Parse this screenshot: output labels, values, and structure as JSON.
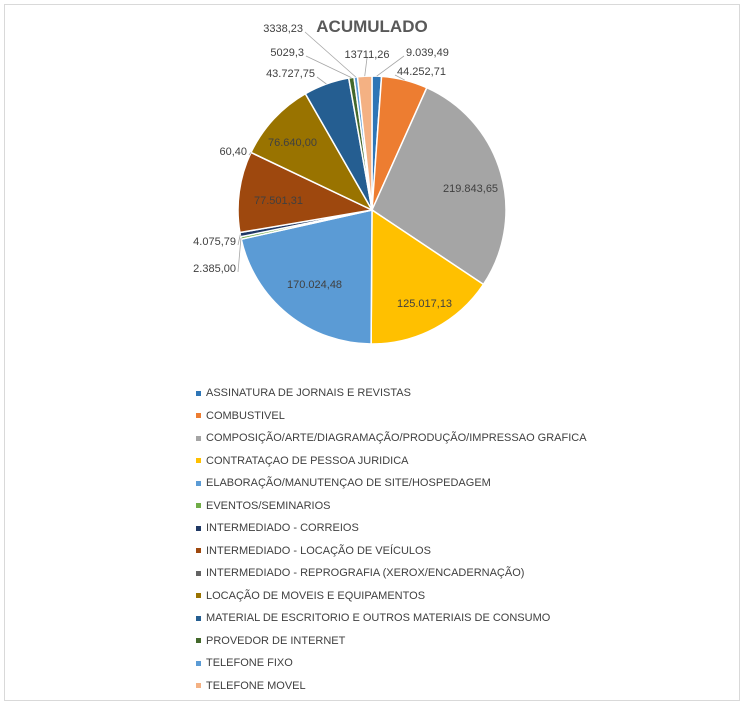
{
  "chart_data": {
    "type": "pie",
    "title": "ACUMULADO",
    "legend_position": "bottom",
    "slices": [
      {
        "name": "ASSINATURA DE JORNAIS E REVISTAS",
        "value": 9039.49,
        "label": "9.039,49",
        "color": "#2e75b6"
      },
      {
        "name": "COMBUSTIVEL",
        "value": 44252.71,
        "label": "44.252,71",
        "color": "#ed7d31"
      },
      {
        "name": "COMPOSIÇÃO/ARTE/DIAGRAMAÇÃO/PRODUÇÃO/IMPRESSAO GRAFICA",
        "value": 219843.65,
        "label": "219.843,65",
        "color": "#a5a5a5"
      },
      {
        "name": "CONTRATAÇAO DE PESSOA JURIDICA",
        "value": 125017.13,
        "label": "125.017,13",
        "color": "#ffc000"
      },
      {
        "name": "ELABORAÇÃO/MANUTENÇAO DE SITE/HOSPEDAGEM",
        "value": 170024.48,
        "label": "170.024,48",
        "color": "#5b9bd5"
      },
      {
        "name": "EVENTOS/SEMINARIOS",
        "value": 2385.0,
        "label": "2.385,00",
        "color": "#70ad47"
      },
      {
        "name": "INTERMEDIADO - CORREIOS",
        "value": 4075.79,
        "label": "4.075,79",
        "color": "#1f3864"
      },
      {
        "name": "INTERMEDIADO - LOCAÇÃO DE VEÍCULOS",
        "value": 77501.31,
        "label": "77.501,31",
        "color": "#9e480e"
      },
      {
        "name": "INTERMEDIADO - REPROGRAFIA (XEROX/ENCADERNAÇÃO)",
        "value": 60.4,
        "label": "60,40",
        "color": "#636363"
      },
      {
        "name": "LOCAÇÃO DE MOVEIS E EQUIPAMENTOS",
        "value": 76640.0,
        "label": "76.640,00",
        "color": "#997300"
      },
      {
        "name": "MATERIAL DE ESCRITORIO E OUTROS MATERIAIS DE CONSUMO",
        "value": 43727.75,
        "label": "43.727,75",
        "color": "#255e91"
      },
      {
        "name": "PROVEDOR DE INTERNET",
        "value": 5029.3,
        "label": "5029,3",
        "color": "#43682b"
      },
      {
        "name": "TELEFONE FIXO",
        "value": 3338.23,
        "label": "3338,23",
        "color": "#5b9bd5"
      },
      {
        "name": "TELEFONE MOVEL",
        "value": 13711.26,
        "label": "13711,26",
        "color": "#f4b183"
      }
    ]
  }
}
